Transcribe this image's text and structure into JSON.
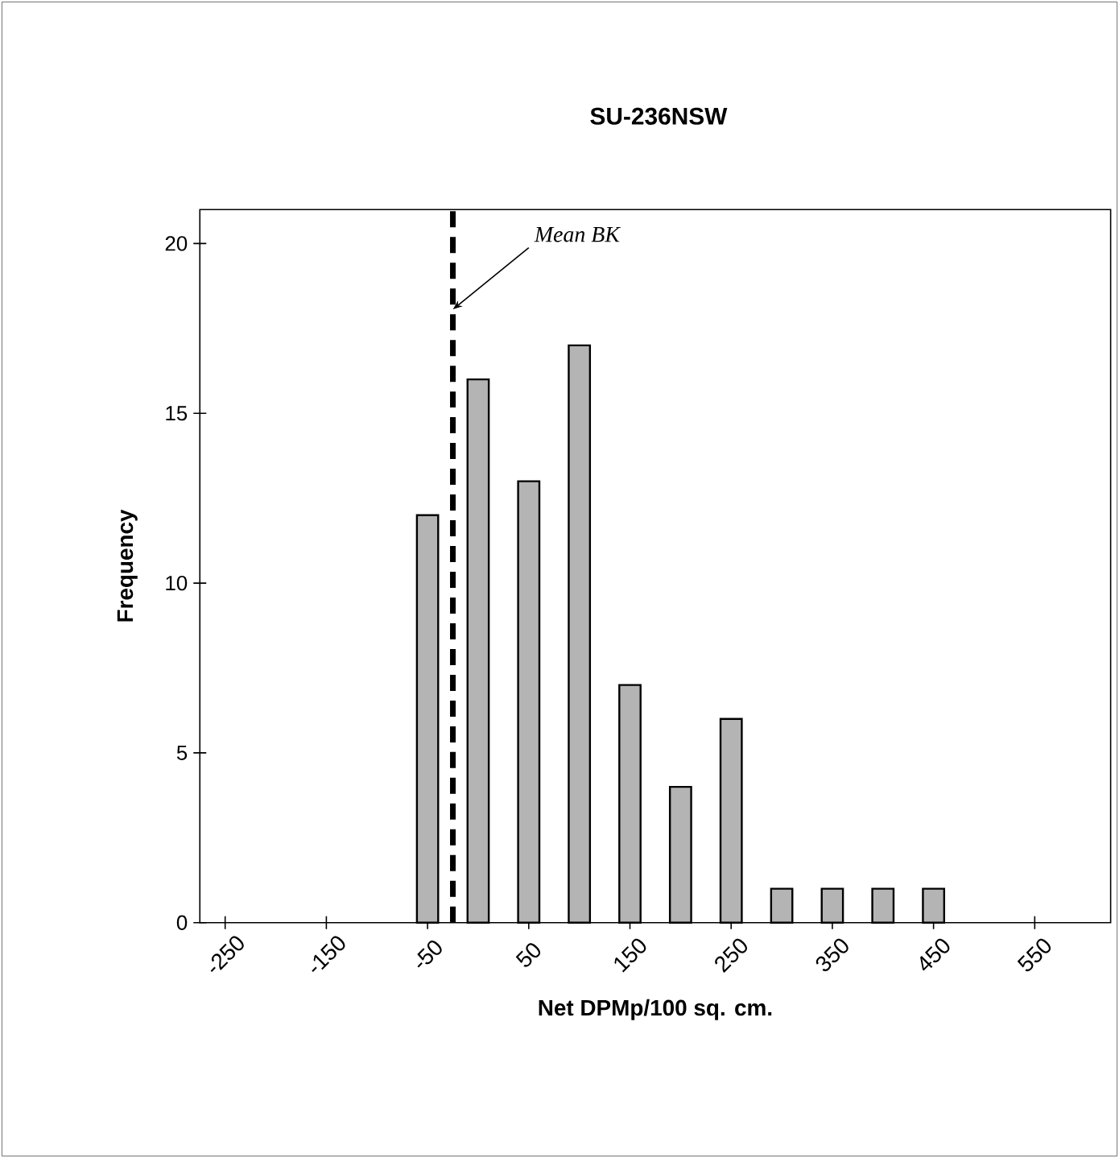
{
  "chart_data": {
    "type": "histogram",
    "title": "SU-236NSW",
    "xlabel": "Net DPMp/100 sq. cm.",
    "ylabel": "Frequency",
    "bins": [
      -275,
      -225,
      -175,
      -125,
      -75,
      -25,
      25,
      75,
      125,
      175,
      225,
      275,
      325,
      375,
      425,
      475,
      525,
      575,
      625
    ],
    "values": [
      0,
      0,
      0,
      0,
      12,
      16,
      13,
      17,
      7,
      4,
      6,
      1,
      1,
      1,
      1,
      0,
      0,
      0
    ],
    "color": "#b4b4b4",
    "xlim": [
      -275,
      625
    ],
    "ylim": [
      0,
      21
    ],
    "xticks": [
      -250,
      -150,
      -50,
      50,
      150,
      250,
      350,
      450,
      550
    ],
    "yticks": [
      0,
      5,
      10,
      15,
      20
    ],
    "ref_lines": [
      {
        "axis": "x",
        "value": -25,
        "label": "Mean BK",
        "color": "#000000",
        "line_style": "dashed"
      }
    ],
    "grid": false
  }
}
